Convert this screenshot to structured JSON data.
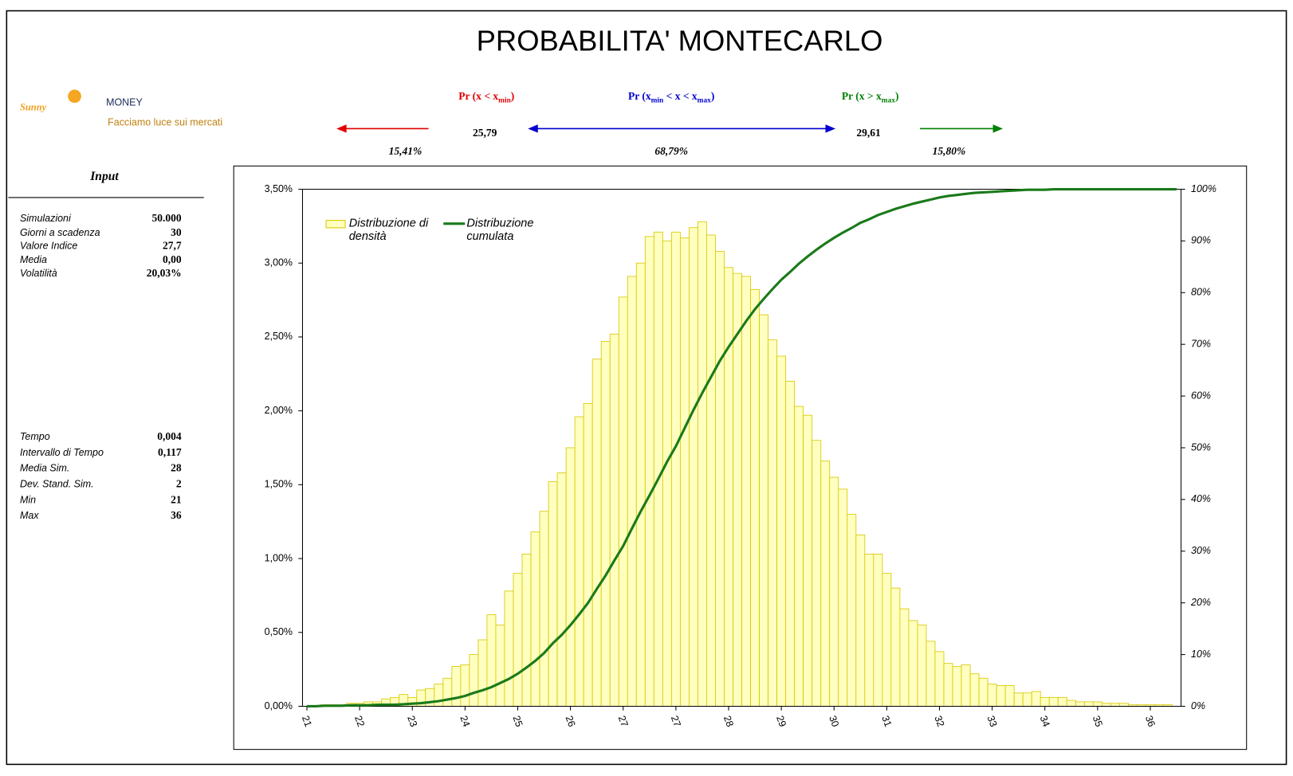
{
  "header": {
    "title": "PROBABILITA' MONTECARLO",
    "logo": {
      "brand_1": "Sunny",
      "brand_2": "MONEY",
      "tagline": "Facciamo luce sui mercati"
    },
    "probabilities": [
      {
        "label": [
          "Pr (x < x",
          "min",
          ")"
        ],
        "value": "15,41%"
      },
      {
        "label": [
          "Pr (x",
          "min",
          " < x < x",
          "max",
          ")"
        ],
        "value": "68,79%"
      },
      {
        "label": [
          "Pr (x > x",
          "max",
          ")"
        ],
        "value": "15,80%"
      }
    ],
    "thresholds": [
      "25,79",
      "29,61"
    ]
  },
  "inputs": {
    "title": "Input",
    "rows": [
      [
        "Simulazioni",
        "50.000"
      ],
      [
        "Giorni a scadenza",
        "30"
      ],
      [
        "Valore Indice",
        "27,7"
      ],
      [
        "Media",
        "0,00"
      ],
      [
        "Volatilità",
        "20,03%"
      ]
    ],
    "results": [
      [
        "Tempo",
        "0,004"
      ],
      [
        "Intervallo di Tempo",
        "0,117"
      ],
      [
        "Media Sim.",
        "28"
      ],
      [
        "Dev. Stand. Sim.",
        "2"
      ],
      [
        "Min",
        "21"
      ],
      [
        "Max",
        "36"
      ]
    ]
  },
  "chart_data": {
    "type": "bar",
    "legend": "upper left",
    "categories": [
      "21",
      null,
      null,
      null,
      null,
      null,
      "22",
      null,
      null,
      null,
      null,
      null,
      "23",
      null,
      null,
      null,
      null,
      null,
      "24",
      null,
      null,
      null,
      null,
      null,
      "25",
      null,
      null,
      null,
      null,
      null,
      "26",
      null,
      null,
      null,
      null,
      null,
      "27",
      null,
      null,
      null,
      null,
      null,
      "27",
      null,
      null,
      null,
      null,
      null,
      "28",
      null,
      null,
      null,
      null,
      null,
      "29",
      null,
      null,
      null,
      null,
      null,
      "30",
      null,
      null,
      null,
      null,
      null,
      "31",
      null,
      null,
      null,
      null,
      null,
      "32",
      null,
      null,
      null,
      null,
      null,
      "33",
      null,
      null,
      null,
      null,
      null,
      "34",
      null,
      null,
      null,
      null,
      null,
      "35",
      null,
      null,
      null,
      null,
      null,
      "36",
      null,
      null,
      null
    ],
    "series": [
      {
        "name": "Distribuzione di densità",
        "color": "#ffffc0",
        "edge_color": "#d8c800",
        "values": [
          0,
          0,
          0.01,
          0.01,
          0.01,
          0.02,
          0.02,
          0.03,
          0.03,
          0.05,
          0.06,
          0.08,
          0.06,
          0.11,
          0.12,
          0.15,
          0.19,
          0.27,
          0.28,
          0.35,
          0.45,
          0.62,
          0.55,
          0.78,
          0.9,
          1.03,
          1.18,
          1.32,
          1.52,
          1.58,
          1.75,
          1.96,
          2.05,
          2.35,
          2.47,
          2.52,
          2.77,
          2.91,
          3.0,
          3.18,
          3.21,
          3.15,
          3.21,
          3.17,
          3.24,
          3.28,
          3.19,
          3.08,
          2.97,
          2.93,
          2.91,
          2.82,
          2.65,
          2.48,
          2.37,
          2.2,
          2.03,
          1.97,
          1.8,
          1.66,
          1.55,
          1.47,
          1.3,
          1.16,
          1.03,
          1.03,
          0.9,
          0.8,
          0.66,
          0.58,
          0.55,
          0.44,
          0.37,
          0.29,
          0.27,
          0.28,
          0.22,
          0.19,
          0.15,
          0.14,
          0.14,
          0.09,
          0.09,
          0.1,
          0.06,
          0.06,
          0.06,
          0.04,
          0.03,
          0.03,
          0.03,
          0.02,
          0.02,
          0.02,
          0.01,
          0.01,
          0.01,
          0.01,
          0.01,
          0
        ]
      },
      {
        "name": "Distribuzione cumulata",
        "type": "line",
        "axis": "y2",
        "color": "#1a7a1a",
        "values": [
          0,
          0,
          0.1,
          0.1,
          0.1,
          0.2,
          0.2,
          0.2,
          0.3,
          0.3,
          0.3,
          0.4,
          0.5,
          0.6,
          0.8,
          1.0,
          1.3,
          1.6,
          2.0,
          2.6,
          3.1,
          3.7,
          4.5,
          5.3,
          6.3,
          7.5,
          8.8,
          10.3,
          12.2,
          13.8,
          15.7,
          17.8,
          20.0,
          22.7,
          25.3,
          28.2,
          31.0,
          34.4,
          37.7,
          40.8,
          44.0,
          47.3,
          50.3,
          53.8,
          57.3,
          60.6,
          63.7,
          66.8,
          69.5,
          72.0,
          74.5,
          76.8,
          78.8,
          80.7,
          82.5,
          84.0,
          85.6,
          87.0,
          88.3,
          89.5,
          90.6,
          91.6,
          92.5,
          93.5,
          94.2,
          95.0,
          95.6,
          96.2,
          96.7,
          97.2,
          97.6,
          98.0,
          98.4,
          98.7,
          98.9,
          99.1,
          99.3,
          99.4,
          99.5,
          99.6,
          99.7,
          99.8,
          99.9,
          99.9,
          99.9,
          100,
          100,
          100,
          100,
          100,
          100,
          100,
          100,
          100,
          100,
          100,
          100,
          100,
          100,
          100
        ]
      }
    ],
    "ylim": [
      0,
      3.5
    ],
    "yticks": [
      {
        "value": 0,
        "label": "0,00%"
      },
      {
        "value": 0.5,
        "label": "0,50%"
      },
      {
        "value": 1,
        "label": "1,00%"
      },
      {
        "value": 1.5,
        "label": "1,50%"
      },
      {
        "value": 2,
        "label": "2,00%"
      },
      {
        "value": 2.5,
        "label": "2,50%"
      },
      {
        "value": 3,
        "label": "3,00%"
      },
      {
        "value": 3.5,
        "label": "3,50%"
      }
    ],
    "y2lim": [
      0,
      100
    ],
    "y2ticks": [
      {
        "value": 0,
        "label": "0%"
      },
      {
        "value": 10,
        "label": "10%"
      },
      {
        "value": 20,
        "label": "20%"
      },
      {
        "value": 30,
        "label": "30%"
      },
      {
        "value": 40,
        "label": "40%"
      },
      {
        "value": 50,
        "label": "50%"
      },
      {
        "value": 60,
        "label": "60%"
      },
      {
        "value": 70,
        "label": "70%"
      },
      {
        "value": 80,
        "label": "80%"
      },
      {
        "value": 90,
        "label": "90%"
      },
      {
        "value": 100,
        "label": "100%"
      }
    ]
  }
}
